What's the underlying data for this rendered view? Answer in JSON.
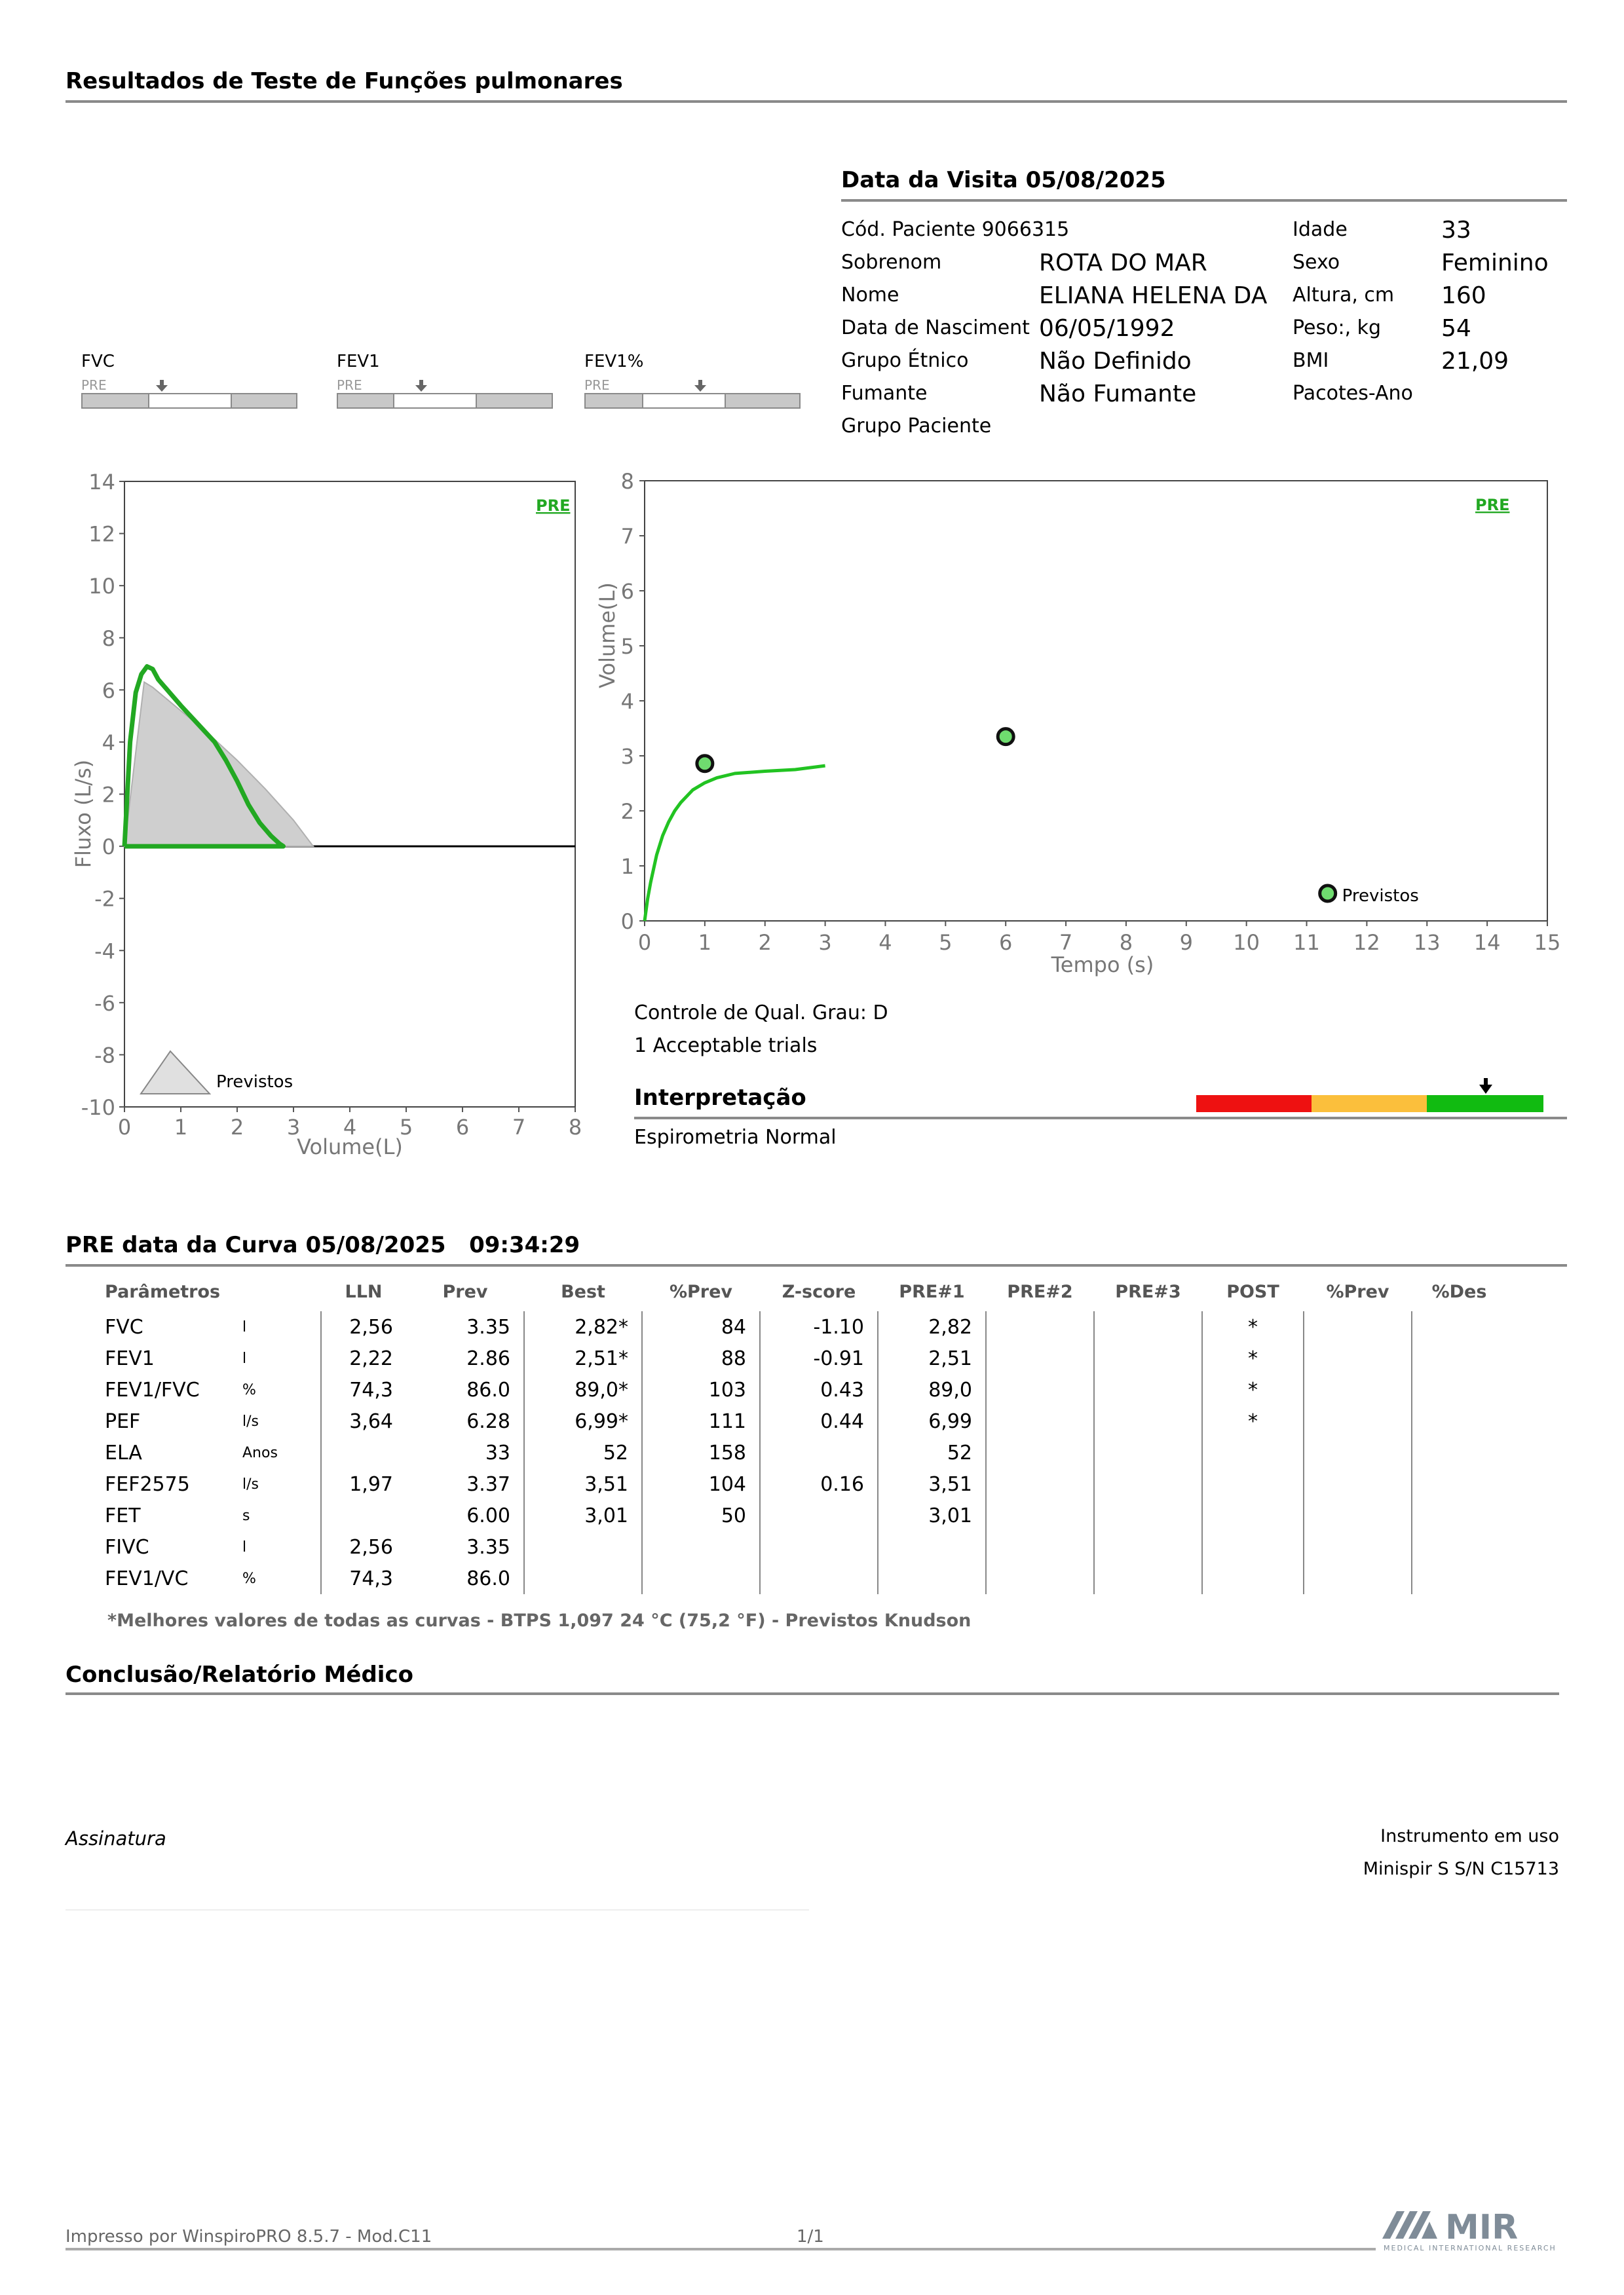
{
  "header": {
    "title": "Resultados de Teste de Funções pulmonares"
  },
  "visit": {
    "title": "Data da Visita 05/08/2025",
    "patient_code": "Cód. Paciente 9066315",
    "left_fields": [
      {
        "label": "Sobrenom",
        "value": "ROTA DO MAR"
      },
      {
        "label": "Nome",
        "value": "ELIANA HELENA DA"
      },
      {
        "label": "Data de Nasciment",
        "value": "06/05/1992"
      },
      {
        "label": "Grupo Étnico",
        "value": "Não Definido"
      },
      {
        "label": "Fumante",
        "value": "Não Fumante"
      },
      {
        "label": "Grupo Paciente",
        "value": ""
      }
    ],
    "right_fields": [
      {
        "label": "Idade",
        "value": "33"
      },
      {
        "label": "Sexo",
        "value": "Feminino"
      },
      {
        "label": "Altura, cm",
        "value": "160"
      },
      {
        "label": "Peso:, kg",
        "value": "54"
      },
      {
        "label": "BMI",
        "value": "21,09"
      },
      {
        "label": "Pacotes-Ano",
        "value": ""
      }
    ]
  },
  "mini_bars": [
    {
      "label": "FVC",
      "pre": "PRE"
    },
    {
      "label": "FEV1",
      "pre": "PRE"
    },
    {
      "label": "FEV1%",
      "pre": "PRE"
    }
  ],
  "chart_data": [
    {
      "type": "line",
      "title": "PRE",
      "xlabel": "Volume(L)",
      "ylabel": "Fluxo (L/s)",
      "xlim": [
        0,
        8
      ],
      "ylim": [
        -10,
        14
      ],
      "x_ticks": [
        "0",
        "1",
        "2",
        "3",
        "4",
        "5",
        "6",
        "7",
        "8"
      ],
      "y_ticks": [
        "14",
        "12",
        "10",
        "8",
        "6",
        "4",
        "2",
        "0",
        "-2",
        "-4",
        "-6",
        "-8",
        "-10"
      ],
      "legend": "Previstos",
      "series": [
        {
          "color": "#22a822",
          "x": [
            0,
            0.1,
            0.2,
            0.3,
            0.4,
            0.5,
            0.6,
            0.8,
            1.0,
            1.3,
            1.6,
            1.8,
            2.0,
            2.2,
            2.4,
            2.6,
            2.75,
            2.82
          ],
          "y": [
            0,
            4.0,
            5.9,
            6.6,
            6.9,
            6.8,
            6.4,
            5.9,
            5.4,
            4.7,
            4.0,
            3.3,
            2.5,
            1.6,
            0.9,
            0.4,
            0.1,
            0
          ]
        },
        {
          "color": "#b8b8b8",
          "fill": true,
          "x": [
            0,
            0.35,
            0.5,
            1.0,
            1.5,
            2.0,
            2.5,
            3.0,
            3.35
          ],
          "y": [
            0,
            6.3,
            6.1,
            5.2,
            4.3,
            3.3,
            2.2,
            1.0,
            0
          ]
        }
      ]
    },
    {
      "type": "line",
      "title": "PRE",
      "xlabel": "Tempo (s)",
      "ylabel": "Volume(L)",
      "xlim": [
        0,
        15
      ],
      "ylim": [
        0,
        8
      ],
      "x_ticks": [
        "0",
        "1",
        "2",
        "3",
        "4",
        "5",
        "6",
        "7",
        "8",
        "9",
        "10",
        "11",
        "12",
        "13",
        "14",
        "15"
      ],
      "y_ticks": [
        "8",
        "7",
        "6",
        "5",
        "4",
        "3",
        "2",
        "1",
        "0"
      ],
      "legend": "Previstos",
      "series": [
        {
          "color": "#22c322",
          "x": [
            0,
            0.05,
            0.1,
            0.2,
            0.3,
            0.4,
            0.5,
            0.6,
            0.8,
            1.0,
            1.2,
            1.5,
            2.0,
            2.5,
            3.0
          ],
          "y": [
            0,
            0.4,
            0.7,
            1.2,
            1.55,
            1.8,
            2.0,
            2.15,
            2.38,
            2.51,
            2.6,
            2.68,
            2.72,
            2.75,
            2.82
          ]
        }
      ],
      "points": [
        {
          "x": 1.0,
          "y": 2.86
        },
        {
          "x": 6.0,
          "y": 3.35
        },
        {
          "x": 11.35,
          "y": 0.5
        }
      ]
    }
  ],
  "quality": {
    "grade": "Controle de Qual. Grau: D",
    "trials": "1 Acceptable trials"
  },
  "interpretation": {
    "title": "Interpretação",
    "text": "Espirometria Normal",
    "scale_colors": [
      "#ee1111",
      "#fbbf3c",
      "#11bb11"
    ]
  },
  "curve": {
    "title": "PRE data da Curva 05/08/2025",
    "time": "09:34:29"
  },
  "table": {
    "headers": [
      "Parâmetros",
      "",
      "LLN",
      "Prev",
      "Best",
      "%Prev",
      "Z-score",
      "PRE#1",
      "PRE#2",
      "PRE#3",
      "POST",
      "%Prev",
      "%Des"
    ],
    "rows": [
      [
        "FVC",
        "l",
        "2,56",
        "3.35",
        "2,82*",
        "84",
        "-1.10",
        "2,82",
        "",
        "",
        "*",
        "",
        ""
      ],
      [
        "FEV1",
        "l",
        "2,22",
        "2.86",
        "2,51*",
        "88",
        "-0.91",
        "2,51",
        "",
        "",
        "*",
        "",
        ""
      ],
      [
        "FEV1/FVC",
        "%",
        "74,3",
        "86.0",
        "89,0*",
        "103",
        "0.43",
        "89,0",
        "",
        "",
        "*",
        "",
        ""
      ],
      [
        "PEF",
        "l/s",
        "3,64",
        "6.28",
        "6,99*",
        "111",
        "0.44",
        "6,99",
        "",
        "",
        "*",
        "",
        ""
      ],
      [
        "ELA",
        "Anos",
        "",
        "33",
        "52",
        "158",
        "",
        "52",
        "",
        "",
        "",
        "",
        ""
      ],
      [
        "FEF2575",
        "l/s",
        "1,97",
        "3.37",
        "3,51",
        "104",
        "0.16",
        "3,51",
        "",
        "",
        "",
        "",
        ""
      ],
      [
        "FET",
        "s",
        "",
        "6.00",
        "3,01",
        "50",
        "",
        "3,01",
        "",
        "",
        "",
        "",
        ""
      ],
      [
        "FIVC",
        "l",
        "2,56",
        "3.35",
        "",
        "",
        "",
        "",
        "",
        "",
        "",
        "",
        ""
      ],
      [
        "FEV1/VC",
        "%",
        "74,3",
        "86.0",
        "",
        "",
        "",
        "",
        "",
        "",
        "",
        "",
        ""
      ]
    ],
    "footnote": "*Melhores valores de todas as curvas - BTPS  1,097  24 °C  (75,2 °F) - Previstos Knudson"
  },
  "conclusion": {
    "title": "Conclusão/Relatório Médico"
  },
  "signature": {
    "label": "Assinatura"
  },
  "instrument": {
    "label": "Instrumento em uso",
    "value": "Minispir S S/N C15713"
  },
  "footer": {
    "printed": "Impresso por WinspiroPRO  8.5.7 - Mod.C11",
    "page": "1/1",
    "logo": "MIR",
    "logo_sub": "MEDICAL INTERNATIONAL RESEARCH"
  }
}
